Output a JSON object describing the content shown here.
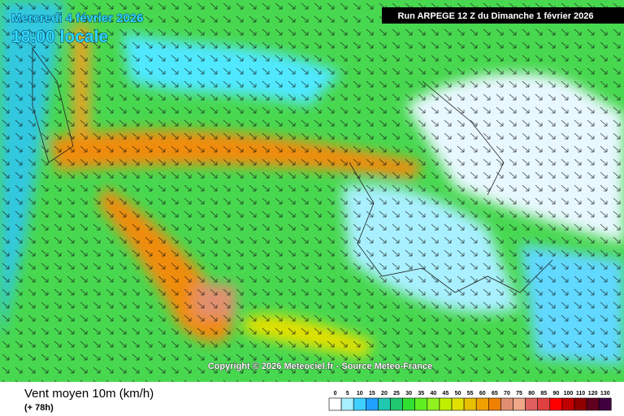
{
  "header": {
    "date": "Mercredi 4 février 2026",
    "time": "18:00 locale",
    "run": "Run ARPEGE 12 Z du Dimanche 1 février 2026"
  },
  "copyright": "Copyright © 2026 Meteociel.fr - Source Meteo-France",
  "footer": {
    "title": "Vent moyen 10m (km/h)",
    "lead": "(+ 78h)"
  },
  "legend": {
    "ticks": [
      0,
      5,
      10,
      15,
      20,
      25,
      30,
      35,
      40,
      45,
      50,
      55,
      60,
      65,
      70,
      75,
      80,
      85,
      90,
      100,
      110,
      120,
      130
    ],
    "colors": [
      "#ffffff",
      "#a8f0ff",
      "#40d0ff",
      "#20a0ff",
      "#20c8b0",
      "#20c870",
      "#30e030",
      "#60f020",
      "#90f020",
      "#c0f000",
      "#e0e000",
      "#e8c000",
      "#f0a000",
      "#f08000",
      "#e09070",
      "#f0a888",
      "#e06060",
      "#e04040",
      "#ff0000",
      "#c00000",
      "#900000",
      "#600020",
      "#400040"
    ]
  }
}
